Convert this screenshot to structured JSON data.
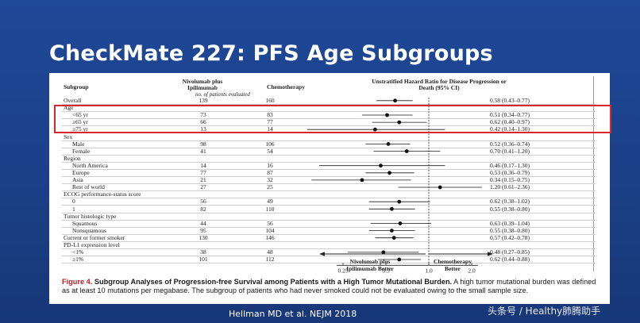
{
  "slide": {
    "title": "CheckMate 227:  PFS Age Subgroups",
    "footer": "Hellman MD et al. NEJM 2018",
    "watermark": "头条号 / Healthy肺腾助手"
  },
  "table": {
    "col_subgroup": "Subgroup",
    "col_nivo": "Nivolumab plus Ipilimumab",
    "col_chemo": "Chemotherapy",
    "col_hr": "Unstratified Hazard Ratio for Disease Progression or Death (95% CI)",
    "patients_note": "no. of patients evaluated",
    "favor_left": "Nivolumab plus Ipilimumab Better",
    "favor_right": "Chemotherapy Better"
  },
  "chart_data": {
    "type": "forest",
    "x_axis": {
      "scale": "log",
      "ticks": [
        0.25,
        0.5,
        1.0,
        2.0
      ],
      "tick_labels": [
        "0.25",
        "0.5",
        "1.0",
        "2.0"
      ],
      "reference": 1.0
    },
    "rows": [
      {
        "label": "Overall",
        "indent": false,
        "nivo": "139",
        "chemo": "160",
        "hr": 0.58,
        "lo": 0.43,
        "hi": 0.77,
        "text": "0.58 (0.43–0.77)"
      },
      {
        "label": "Age",
        "indent": false,
        "header": true
      },
      {
        "label": "<65 yr",
        "indent": true,
        "nivo": "73",
        "chemo": "83",
        "hr": 0.51,
        "lo": 0.34,
        "hi": 0.77,
        "text": "0.51 (0.34–0.77)"
      },
      {
        "label": "≥65 yr",
        "indent": true,
        "nivo": "66",
        "chemo": "77",
        "hr": 0.62,
        "lo": 0.4,
        "hi": 0.97,
        "text": "0.62 (0.40–0.97)"
      },
      {
        "label": "≥75 yr",
        "indent": true,
        "nivo": "13",
        "chemo": "14",
        "hr": 0.42,
        "lo": 0.14,
        "hi": 1.3,
        "text": "0.42 (0.14–1.30)"
      },
      {
        "label": "Sex",
        "indent": false,
        "header": true
      },
      {
        "label": "Male",
        "indent": true,
        "nivo": "98",
        "chemo": "106",
        "hr": 0.52,
        "lo": 0.36,
        "hi": 0.74,
        "text": "0.52 (0.36–0.74)"
      },
      {
        "label": "Female",
        "indent": true,
        "nivo": "41",
        "chemo": "54",
        "hr": 0.7,
        "lo": 0.41,
        "hi": 1.2,
        "text": "0.70 (0.41–1.20)"
      },
      {
        "label": "Region",
        "indent": false,
        "header": true
      },
      {
        "label": "North America",
        "indent": true,
        "nivo": "14",
        "chemo": "16",
        "hr": 0.46,
        "lo": 0.17,
        "hi": 1.3,
        "text": "0.46 (0.17–1.30)"
      },
      {
        "label": "Europe",
        "indent": true,
        "nivo": "77",
        "chemo": "87",
        "hr": 0.53,
        "lo": 0.36,
        "hi": 0.79,
        "text": "0.53 (0.36–0.79)"
      },
      {
        "label": "Asia",
        "indent": true,
        "nivo": "21",
        "chemo": "32",
        "hr": 0.34,
        "lo": 0.15,
        "hi": 0.75,
        "text": "0.34 (0.15–0.75)"
      },
      {
        "label": "Rest of world",
        "indent": true,
        "nivo": "27",
        "chemo": "25",
        "hr": 1.2,
        "lo": 0.61,
        "hi": 2.36,
        "text": "1.20 (0.61–2.36)"
      },
      {
        "label": "ECOG performance-status score",
        "indent": false,
        "header": true
      },
      {
        "label": "0",
        "indent": true,
        "nivo": "56",
        "chemo": "49",
        "hr": 0.62,
        "lo": 0.38,
        "hi": 1.02,
        "text": "0.62 (0.38–1.02)"
      },
      {
        "label": "1",
        "indent": true,
        "nivo": "82",
        "chemo": "110",
        "hr": 0.55,
        "lo": 0.38,
        "hi": 0.8,
        "text": "0.55 (0.38–0.80)"
      },
      {
        "label": "Tumor histologic type",
        "indent": false,
        "header": true
      },
      {
        "label": "Squamous",
        "indent": true,
        "nivo": "44",
        "chemo": "56",
        "hr": 0.63,
        "lo": 0.39,
        "hi": 1.04,
        "text": "0.63 (0.39–1.04)"
      },
      {
        "label": "Nonsquamous",
        "indent": true,
        "nivo": "95",
        "chemo": "104",
        "hr": 0.55,
        "lo": 0.38,
        "hi": 0.8,
        "text": "0.55 (0.38–0.80)"
      },
      {
        "label": "Current or former smoker",
        "indent": false,
        "nivo": "130",
        "chemo": "146",
        "hr": 0.57,
        "lo": 0.42,
        "hi": 0.78,
        "text": "0.57 (0.42–0.78)"
      },
      {
        "label": "PD-L1 expression level",
        "indent": false,
        "header": true
      },
      {
        "label": "<1%",
        "indent": true,
        "nivo": "38",
        "chemo": "48",
        "hr": 0.48,
        "lo": 0.27,
        "hi": 0.85,
        "text": "0.48 (0.27–0.85)"
      },
      {
        "label": "≥1%",
        "indent": true,
        "nivo": "101",
        "chemo": "112",
        "hr": 0.62,
        "lo": 0.44,
        "hi": 0.88,
        "text": "0.62 (0.44–0.88)"
      }
    ]
  },
  "caption": {
    "figure_label": "Figure 4.",
    "title": "Subgroup Analyses of Progression-free Survival among Patients with a High Tumor Mutational Burden.",
    "body": "A high tumor mutational burden was defined as at least 10 mutations per megabase. The subgroup of patients who had never smoked could not be evaluated owing to the small sample size."
  }
}
